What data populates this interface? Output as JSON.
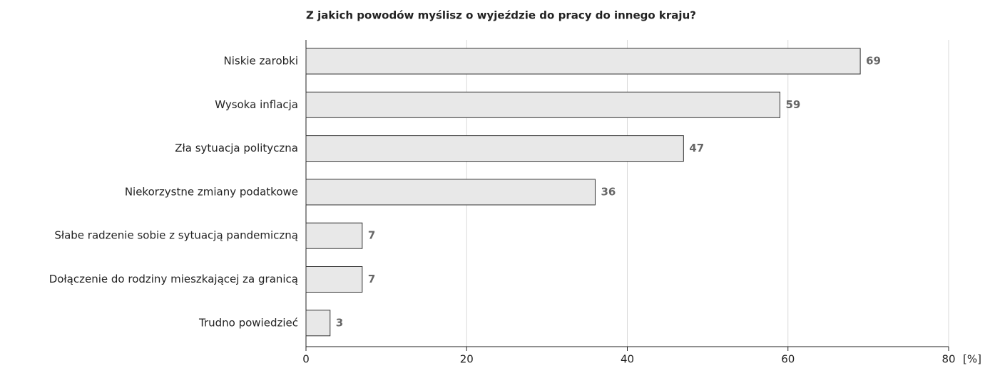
{
  "chart_data": {
    "type": "bar",
    "orientation": "horizontal",
    "title": "Z jakich powodów myślisz o wyjeździe do pracy do innego kraju?",
    "x_label": "[%]",
    "categories": [
      "Niskie zarobki",
      "Wysoka inflacja",
      "Zła sytuacja polityczna",
      "Niekorzystne zmiany podatkowe",
      "Słabe radzenie sobie z sytuacją pandemiczną",
      "Dołączenie do rodziny mieszkającej za granicą",
      "Trudno powiedzieć"
    ],
    "values": [
      69,
      59,
      47,
      36,
      7,
      7,
      3
    ],
    "color": "#e8e8e8",
    "xlim": [
      0,
      80
    ],
    "xticks": [
      0,
      20,
      40,
      60,
      80
    ],
    "grid": true
  }
}
